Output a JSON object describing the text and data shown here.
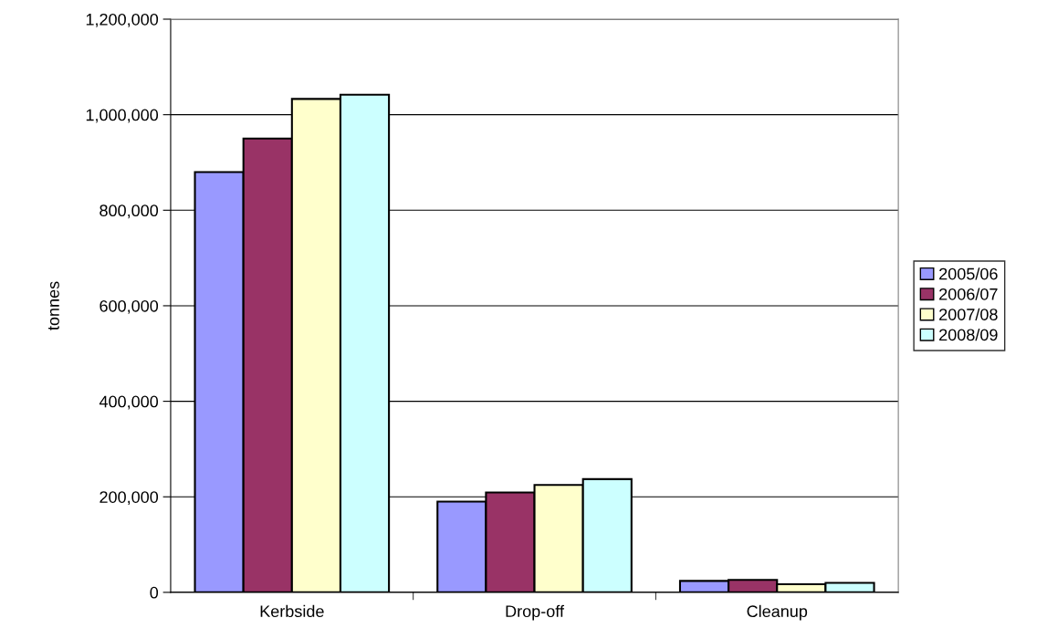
{
  "chart_data": {
    "type": "bar",
    "ylabel": "tonnes",
    "categories": [
      "Kerbside",
      "Drop-off",
      "Cleanup"
    ],
    "series": [
      {
        "name": "2005/06",
        "color": "#9999ff",
        "values": [
          880000,
          190000,
          24000
        ]
      },
      {
        "name": "2006/07",
        "color": "#993366",
        "values": [
          950000,
          209000,
          26000
        ]
      },
      {
        "name": "2007/08",
        "color": "#ffffcc",
        "values": [
          1033000,
          225000,
          17000
        ]
      },
      {
        "name": "2008/09",
        "color": "#ccffff",
        "values": [
          1042000,
          237000,
          20000
        ]
      }
    ],
    "ylim": [
      0,
      1200000
    ],
    "yticks": [
      {
        "value": 0,
        "label": "0"
      },
      {
        "value": 200000,
        "label": "200,000"
      },
      {
        "value": 400000,
        "label": "400,000"
      },
      {
        "value": 600000,
        "label": "600,000"
      },
      {
        "value": 800000,
        "label": "800,000"
      },
      {
        "value": 1000000,
        "label": "1,000,000"
      },
      {
        "value": 1200000,
        "label": "1,200,000"
      }
    ],
    "grid": "y",
    "legend": "right"
  }
}
